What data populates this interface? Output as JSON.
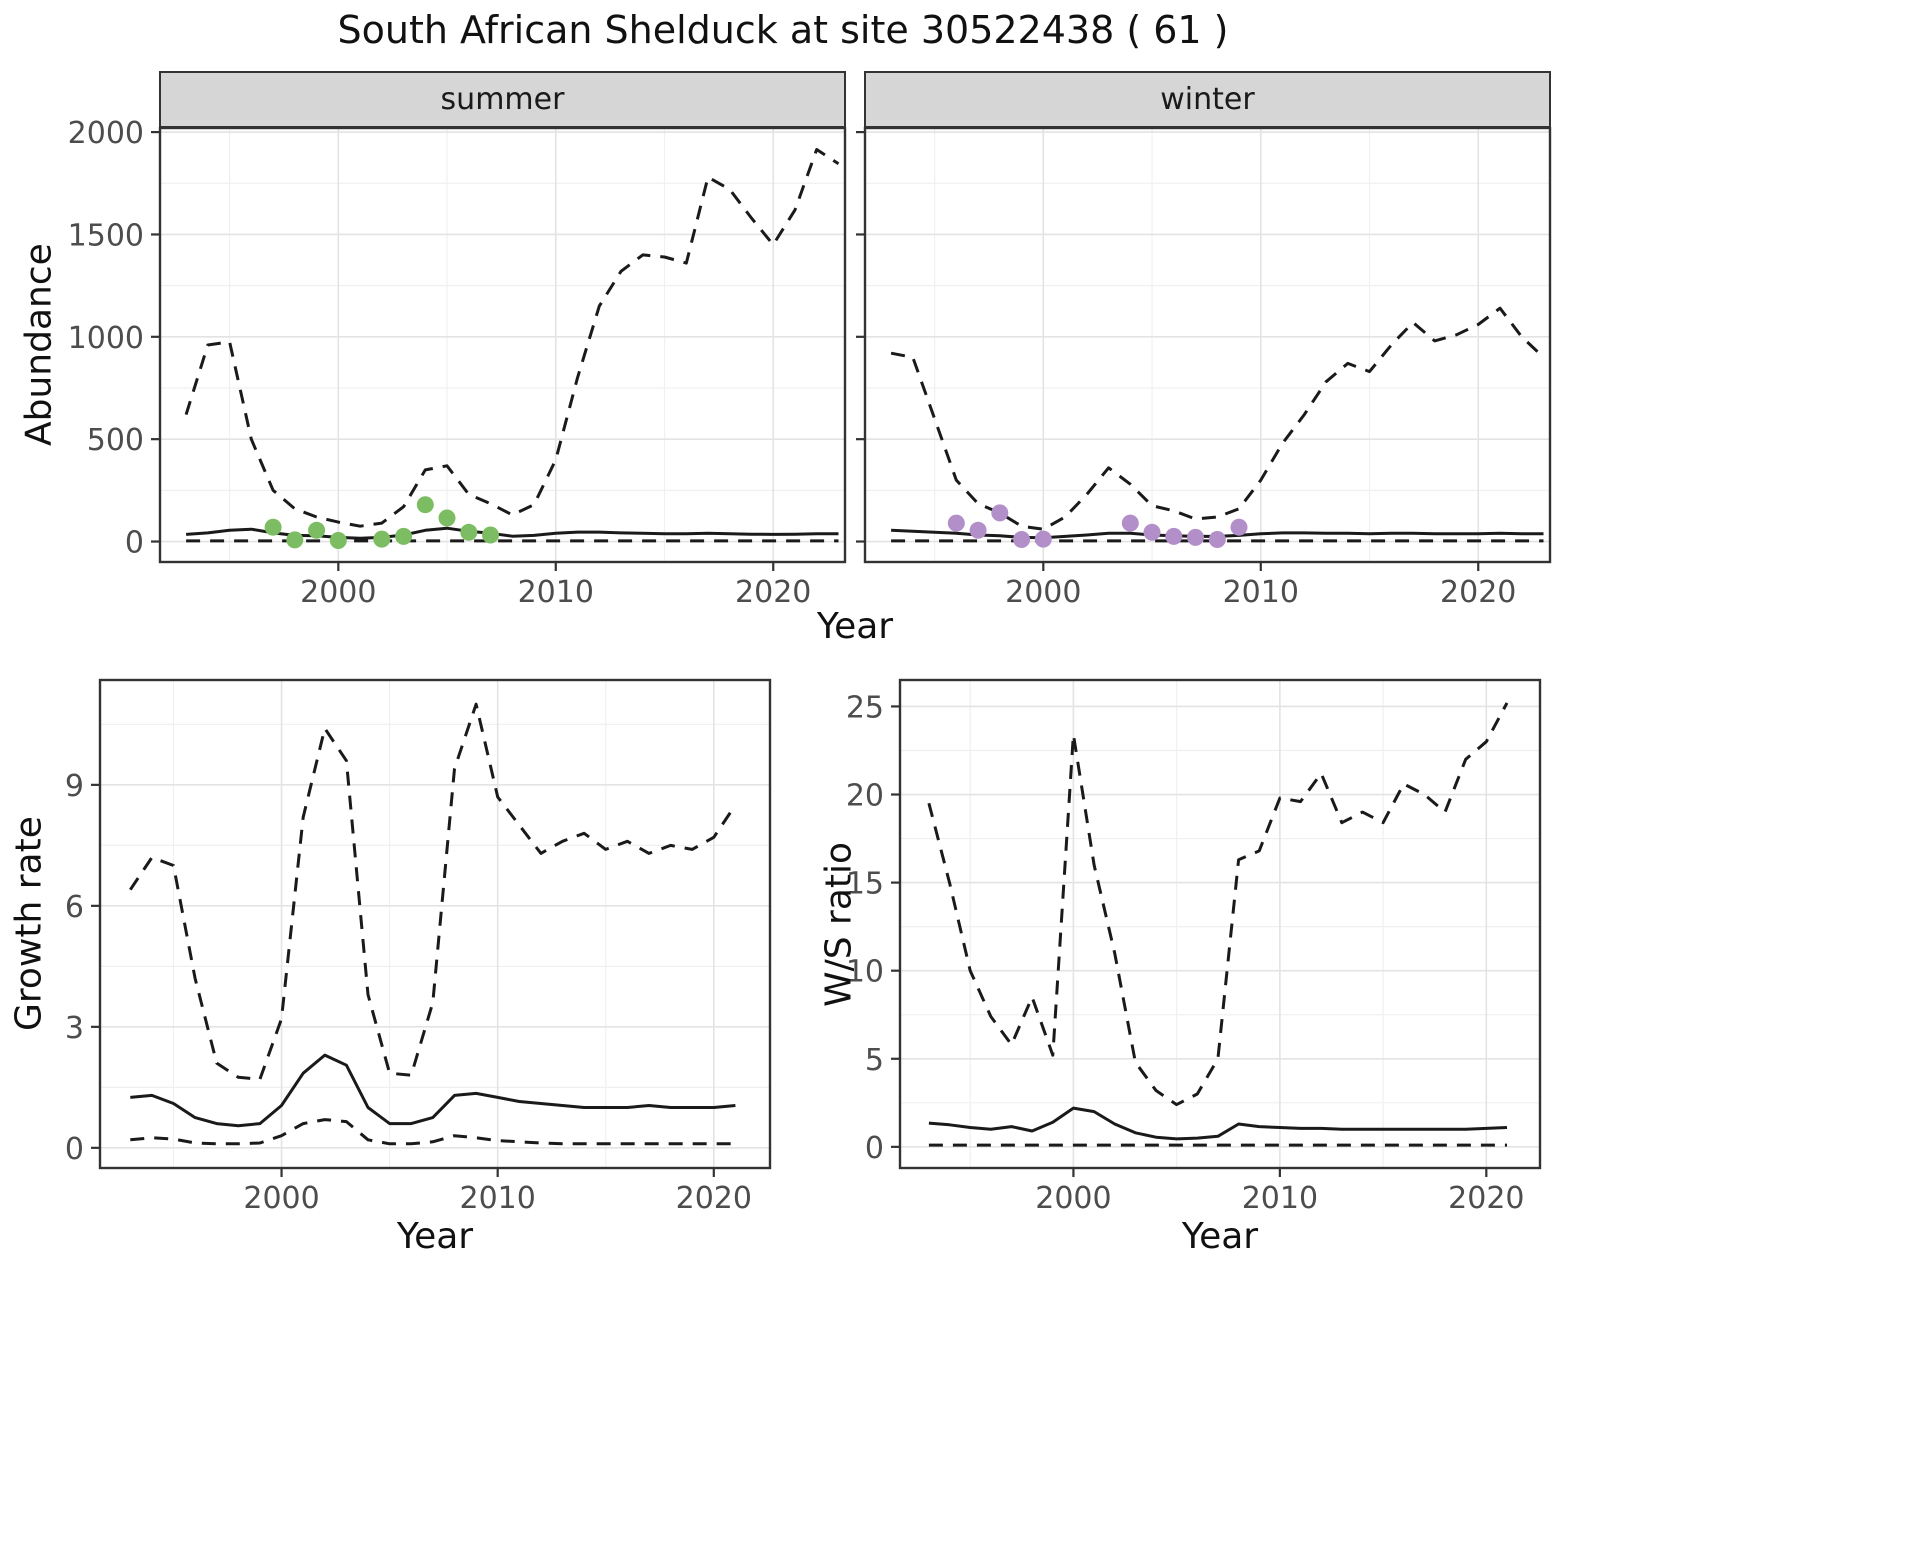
{
  "title": "South African Shelduck at site 30522438 ( 61 )",
  "theme": {
    "line": "#1a1a1a",
    "grid_major": "#e3e3e3",
    "grid_minor": "#f0f0f0",
    "border": "#333333",
    "tick_text": "#4d4d4d",
    "strip_bg": "#d6d6d6",
    "summer_point_color": "#7cbd63",
    "winter_point_color": "#b28fc9"
  },
  "chart_data": [
    {
      "id": "abundance-summer",
      "type": "line",
      "facet": "summer",
      "xlabel": "Year",
      "ylabel": "Abundance",
      "xlim": [
        1991.8,
        2023.3
      ],
      "ylim": [
        -100,
        2020
      ],
      "xticks": [
        2000,
        2010,
        2020
      ],
      "yticks": [
        0,
        500,
        1000,
        1500,
        2000
      ],
      "years": [
        1993,
        1994,
        1995,
        1996,
        1997,
        1998,
        1999,
        2000,
        2001,
        2002,
        2003,
        2004,
        2005,
        2006,
        2007,
        2008,
        2009,
        2010,
        2011,
        2012,
        2013,
        2014,
        2015,
        2016,
        2017,
        2018,
        2019,
        2020,
        2021,
        2022,
        2023
      ],
      "series": [
        {
          "name": "upper-95ci",
          "style": "dashed",
          "y": [
            620,
            960,
            975,
            500,
            250,
            160,
            120,
            95,
            75,
            90,
            170,
            350,
            370,
            230,
            185,
            130,
            180,
            400,
            800,
            1150,
            1320,
            1400,
            1390,
            1360,
            1780,
            1720,
            1580,
            1450,
            1620,
            1915,
            1845
          ]
        },
        {
          "name": "median",
          "style": "solid",
          "y": [
            35,
            42,
            55,
            60,
            42,
            30,
            28,
            20,
            16,
            20,
            32,
            55,
            65,
            50,
            40,
            26,
            30,
            40,
            46,
            46,
            42,
            40,
            38,
            38,
            40,
            38,
            36,
            35,
            36,
            38,
            38
          ]
        },
        {
          "name": "lower-95ci",
          "style": "dashed",
          "x": [
            1993,
            2023
          ],
          "y": [
            3,
            3
          ]
        },
        {
          "name": "observed-counts-summer",
          "style": "points",
          "color": "#7cbd63",
          "x": [
            1997,
            1998,
            1999,
            2000,
            2002,
            2003,
            2004,
            2005,
            2006,
            2007
          ],
          "y": [
            70,
            8,
            55,
            5,
            12,
            25,
            180,
            115,
            45,
            32
          ]
        }
      ]
    },
    {
      "id": "abundance-winter",
      "type": "line",
      "facet": "winter",
      "xlabel": "Year",
      "ylabel": "Abundance",
      "xlim": [
        1991.8,
        2023.3
      ],
      "ylim": [
        -100,
        2020
      ],
      "xticks": [
        2000,
        2010,
        2020
      ],
      "yticks": [
        0,
        500,
        1000,
        1500,
        2000
      ],
      "years": [
        1993,
        1994,
        1995,
        1996,
        1997,
        1998,
        1999,
        2000,
        2001,
        2002,
        2003,
        2004,
        2005,
        2006,
        2007,
        2008,
        2009,
        2010,
        2011,
        2012,
        2013,
        2014,
        2015,
        2016,
        2017,
        2018,
        2019,
        2020,
        2021,
        2022,
        2023
      ],
      "series": [
        {
          "name": "upper-95ci",
          "style": "dashed",
          "y": [
            920,
            900,
            600,
            300,
            185,
            140,
            75,
            60,
            120,
            230,
            360,
            280,
            175,
            150,
            110,
            120,
            160,
            300,
            480,
            620,
            780,
            870,
            830,
            960,
            1070,
            980,
            1010,
            1060,
            1140,
            1000,
            900
          ]
        },
        {
          "name": "median",
          "style": "solid",
          "y": [
            55,
            50,
            45,
            40,
            32,
            28,
            20,
            18,
            25,
            32,
            40,
            40,
            32,
            28,
            25,
            25,
            30,
            38,
            42,
            42,
            40,
            40,
            38,
            40,
            40,
            38,
            38,
            38,
            40,
            38,
            38
          ]
        },
        {
          "name": "lower-95ci",
          "style": "dashed",
          "x": [
            1993,
            2023
          ],
          "y": [
            3,
            3
          ]
        },
        {
          "name": "observed-counts-winter",
          "style": "points",
          "color": "#b28fc9",
          "x": [
            1996,
            1997,
            1998,
            1999,
            2000,
            2004,
            2005,
            2006,
            2007,
            2008,
            2009
          ],
          "y": [
            90,
            55,
            140,
            10,
            12,
            90,
            45,
            25,
            20,
            10,
            70
          ]
        }
      ]
    },
    {
      "id": "growth-rate",
      "type": "line",
      "facet": "",
      "xlabel": "Year",
      "ylabel": "Growth rate",
      "xlim": [
        1991.6,
        2022.6
      ],
      "ylim": [
        -0.5,
        11.6
      ],
      "xticks": [
        2000,
        2010,
        2020
      ],
      "yticks": [
        0,
        3,
        6,
        9
      ],
      "years": [
        1993,
        1994,
        1995,
        1996,
        1997,
        1998,
        1999,
        2000,
        2001,
        2002,
        2003,
        2004,
        2005,
        2006,
        2007,
        2008,
        2009,
        2010,
        2011,
        2012,
        2013,
        2014,
        2015,
        2016,
        2017,
        2018,
        2019,
        2020,
        2021
      ],
      "series": [
        {
          "name": "upper-95ci",
          "style": "dashed",
          "y": [
            6.4,
            7.2,
            7.0,
            4.2,
            2.1,
            1.75,
            1.7,
            3.2,
            8.2,
            10.4,
            9.6,
            3.8,
            1.85,
            1.8,
            3.6,
            9.4,
            11.0,
            8.7,
            8.0,
            7.3,
            7.6,
            7.8,
            7.4,
            7.6,
            7.3,
            7.5,
            7.4,
            7.7,
            8.5
          ]
        },
        {
          "name": "median",
          "style": "solid",
          "y": [
            1.25,
            1.3,
            1.1,
            0.75,
            0.6,
            0.55,
            0.6,
            1.05,
            1.85,
            2.3,
            2.05,
            1.0,
            0.6,
            0.6,
            0.75,
            1.3,
            1.35,
            1.25,
            1.15,
            1.1,
            1.05,
            1.0,
            1.0,
            1.0,
            1.05,
            1.0,
            1.0,
            1.0,
            1.05
          ]
        },
        {
          "name": "lower-95ci",
          "style": "dashed",
          "y": [
            0.2,
            0.25,
            0.22,
            0.12,
            0.1,
            0.1,
            0.12,
            0.3,
            0.6,
            0.7,
            0.65,
            0.2,
            0.1,
            0.1,
            0.15,
            0.3,
            0.25,
            0.18,
            0.15,
            0.12,
            0.1,
            0.1,
            0.1,
            0.1,
            0.1,
            0.1,
            0.1,
            0.1,
            0.1
          ]
        }
      ]
    },
    {
      "id": "ws-ratio",
      "type": "line",
      "facet": "",
      "xlabel": "Year",
      "ylabel": "W/S ratio",
      "xlim": [
        1991.6,
        2022.6
      ],
      "ylim": [
        -1.2,
        26.5
      ],
      "xticks": [
        2000,
        2010,
        2020
      ],
      "yticks": [
        0,
        5,
        10,
        15,
        20,
        25
      ],
      "years": [
        1993,
        1994,
        1995,
        1996,
        1997,
        1998,
        1999,
        2000,
        2001,
        2002,
        2003,
        2004,
        2005,
        2006,
        2007,
        2008,
        2009,
        2010,
        2011,
        2012,
        2013,
        2014,
        2015,
        2016,
        2017,
        2018,
        2019,
        2020,
        2021
      ],
      "series": [
        {
          "name": "upper-95ci",
          "style": "dashed",
          "y": [
            19.5,
            15.0,
            10.0,
            7.4,
            5.8,
            8.5,
            5.2,
            23.4,
            16.0,
            11.0,
            4.8,
            3.2,
            2.4,
            3.0,
            5.0,
            16.3,
            16.8,
            19.8,
            19.6,
            21.2,
            18.4,
            19.0,
            18.4,
            20.6,
            20.0,
            19.0,
            22.0,
            23.0,
            25.2
          ]
        },
        {
          "name": "median",
          "style": "solid",
          "y": [
            1.35,
            1.25,
            1.1,
            1.0,
            1.15,
            0.9,
            1.4,
            2.2,
            2.0,
            1.3,
            0.8,
            0.55,
            0.45,
            0.5,
            0.6,
            1.3,
            1.15,
            1.1,
            1.05,
            1.05,
            1.0,
            1.0,
            1.0,
            1.0,
            1.0,
            1.0,
            1.0,
            1.05,
            1.1
          ]
        },
        {
          "name": "lower-95ci",
          "style": "dashed",
          "x": [
            1993,
            2021
          ],
          "y": [
            0.1,
            0.1
          ]
        }
      ]
    }
  ]
}
